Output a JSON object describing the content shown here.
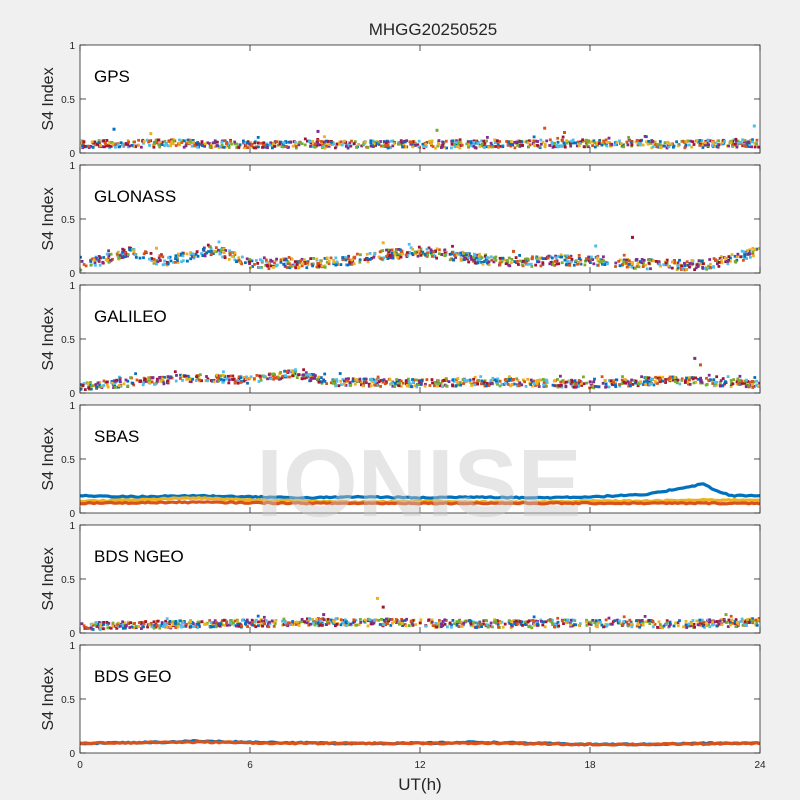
{
  "figure": {
    "title": "MHGG20250525",
    "xlabel": "UT(h)",
    "watermark": "IONISE"
  },
  "chart_data": [
    {
      "type": "scatter",
      "panel_label": "GPS",
      "ylabel": "S4 Index",
      "xlim": [
        0,
        24
      ],
      "ylim": [
        0,
        1
      ],
      "x_ticks": [
        0,
        6,
        12,
        18,
        24
      ],
      "y_ticks": [
        0,
        0.5,
        1
      ],
      "y_tick_labels": [
        "0",
        "0.5",
        "1"
      ],
      "grid": false,
      "baseline": [
        [
          0,
          0.08
        ],
        [
          3,
          0.09
        ],
        [
          6,
          0.08
        ],
        [
          9,
          0.08
        ],
        [
          12,
          0.08
        ],
        [
          15,
          0.08
        ],
        [
          18,
          0.09
        ],
        [
          21,
          0.08
        ],
        [
          24,
          0.09
        ]
      ],
      "spread": 0.07,
      "bursts": [
        [
          1.2,
          0.22
        ],
        [
          2.5,
          0.18
        ],
        [
          8.4,
          0.2
        ],
        [
          12.6,
          0.21
        ],
        [
          16.4,
          0.23
        ],
        [
          17.1,
          0.19
        ],
        [
          23.8,
          0.25
        ]
      ],
      "series_colors": [
        "#0072BD",
        "#D95319",
        "#EDB120",
        "#7E2F8E",
        "#77AC30",
        "#4DBEEE",
        "#A2142F"
      ]
    },
    {
      "type": "scatter",
      "panel_label": "GLONASS",
      "ylabel": "S4 Index",
      "xlim": [
        0,
        24
      ],
      "ylim": [
        0,
        1
      ],
      "x_ticks": [
        0,
        6,
        12,
        18,
        24
      ],
      "y_ticks": [
        0,
        0.5,
        1
      ],
      "y_tick_labels": [
        "0",
        "0.5",
        "1"
      ],
      "grid": false,
      "baseline": [
        [
          0,
          0.06
        ],
        [
          1.8,
          0.2
        ],
        [
          3,
          0.1
        ],
        [
          4.8,
          0.22
        ],
        [
          6,
          0.08
        ],
        [
          9,
          0.1
        ],
        [
          10.5,
          0.16
        ],
        [
          12,
          0.2
        ],
        [
          15,
          0.1
        ],
        [
          18,
          0.12
        ],
        [
          20,
          0.08
        ],
        [
          22,
          0.07
        ],
        [
          24,
          0.2
        ]
      ],
      "spread": 0.09,
      "bursts": [
        [
          10.7,
          0.28
        ],
        [
          19.5,
          0.33
        ],
        [
          18.2,
          0.25
        ],
        [
          15.3,
          0.2
        ],
        [
          2.7,
          0.23
        ]
      ],
      "series_colors": [
        "#0072BD",
        "#D95319",
        "#EDB120",
        "#7E2F8E",
        "#77AC30",
        "#4DBEEE",
        "#A2142F"
      ]
    },
    {
      "type": "scatter",
      "panel_label": "GALILEO",
      "ylabel": "S4 Index",
      "xlim": [
        0,
        24
      ],
      "ylim": [
        0,
        1
      ],
      "x_ticks": [
        0,
        6,
        12,
        18,
        24
      ],
      "y_ticks": [
        0,
        0.5,
        1
      ],
      "y_tick_labels": [
        "0",
        "0.5",
        "1"
      ],
      "grid": false,
      "baseline": [
        [
          0,
          0.06
        ],
        [
          2,
          0.1
        ],
        [
          4,
          0.14
        ],
        [
          6,
          0.12
        ],
        [
          7.5,
          0.18
        ],
        [
          9,
          0.1
        ],
        [
          12,
          0.09
        ],
        [
          15,
          0.1
        ],
        [
          18,
          0.08
        ],
        [
          21,
          0.12
        ],
        [
          24,
          0.08
        ]
      ],
      "spread": 0.07,
      "bursts": [
        [
          21.7,
          0.32
        ],
        [
          21.9,
          0.26
        ],
        [
          7.3,
          0.2
        ],
        [
          8.1,
          0.17
        ]
      ],
      "series_colors": [
        "#0072BD",
        "#D95319",
        "#EDB120",
        "#7E2F8E",
        "#77AC30",
        "#4DBEEE",
        "#A2142F"
      ]
    },
    {
      "type": "line",
      "panel_label": "SBAS",
      "ylabel": "S4 Index",
      "xlim": [
        0,
        24
      ],
      "ylim": [
        0,
        1
      ],
      "x_ticks": [
        0,
        6,
        12,
        18,
        24
      ],
      "y_ticks": [
        0,
        0.5,
        1
      ],
      "y_tick_labels": [
        "0",
        "0.5",
        "1"
      ],
      "grid": false,
      "series": [
        {
          "color": "#0072BD",
          "points": [
            [
              0,
              0.16
            ],
            [
              2,
              0.15
            ],
            [
              4,
              0.16
            ],
            [
              6,
              0.15
            ],
            [
              8,
              0.14
            ],
            [
              10,
              0.15
            ],
            [
              12,
              0.14
            ],
            [
              14,
              0.15
            ],
            [
              16,
              0.14
            ],
            [
              18,
              0.15
            ],
            [
              20,
              0.17
            ],
            [
              21,
              0.22
            ],
            [
              22,
              0.27
            ],
            [
              22.5,
              0.2
            ],
            [
              23,
              0.16
            ],
            [
              24,
              0.16
            ]
          ]
        },
        {
          "color": "#EDB120",
          "points": [
            [
              0,
              0.11
            ],
            [
              2,
              0.12
            ],
            [
              4,
              0.14
            ],
            [
              6,
              0.12
            ],
            [
              8,
              0.11
            ],
            [
              10,
              0.1
            ],
            [
              12,
              0.11
            ],
            [
              14,
              0.1
            ],
            [
              16,
              0.1
            ],
            [
              18,
              0.11
            ],
            [
              20,
              0.11
            ],
            [
              22,
              0.12
            ],
            [
              24,
              0.12
            ]
          ]
        },
        {
          "color": "#D95319",
          "points": [
            [
              0,
              0.09
            ],
            [
              4,
              0.1
            ],
            [
              8,
              0.09
            ],
            [
              12,
              0.09
            ],
            [
              16,
              0.09
            ],
            [
              20,
              0.09
            ],
            [
              24,
              0.09
            ]
          ]
        }
      ]
    },
    {
      "type": "scatter",
      "panel_label": "BDS NGEO",
      "ylabel": "S4 Index",
      "xlim": [
        0,
        24
      ],
      "ylim": [
        0,
        1
      ],
      "x_ticks": [
        0,
        6,
        12,
        18,
        24
      ],
      "y_ticks": [
        0,
        0.5,
        1
      ],
      "y_tick_labels": [
        "0",
        "0.5",
        "1"
      ],
      "grid": false,
      "baseline": [
        [
          0,
          0.06
        ],
        [
          3,
          0.08
        ],
        [
          6,
          0.09
        ],
        [
          8,
          0.1
        ],
        [
          10,
          0.1
        ],
        [
          12,
          0.09
        ],
        [
          15,
          0.08
        ],
        [
          18,
          0.09
        ],
        [
          21,
          0.08
        ],
        [
          24,
          0.1
        ]
      ],
      "spread": 0.07,
      "bursts": [
        [
          10.5,
          0.32
        ],
        [
          10.7,
          0.24
        ],
        [
          8.6,
          0.17
        ],
        [
          22.8,
          0.17
        ]
      ],
      "series_colors": [
        "#0072BD",
        "#D95319",
        "#EDB120",
        "#7E2F8E",
        "#77AC30",
        "#4DBEEE",
        "#A2142F"
      ]
    },
    {
      "type": "line",
      "panel_label": "BDS GEO",
      "ylabel": "S4 Index",
      "xlim": [
        0,
        24
      ],
      "ylim": [
        0,
        1
      ],
      "x_ticks": [
        0,
        6,
        12,
        18,
        24
      ],
      "y_ticks": [
        0,
        0.5,
        1
      ],
      "y_tick_labels": [
        "0",
        "0.5",
        "1"
      ],
      "x_tick_labels": [
        "0",
        "6",
        "12",
        "18",
        "24"
      ],
      "grid": false,
      "series": [
        {
          "color": "#0072BD",
          "points": [
            [
              0,
              0.09
            ],
            [
              3,
              0.1
            ],
            [
              4,
              0.11
            ],
            [
              6,
              0.1
            ],
            [
              9,
              0.09
            ],
            [
              12,
              0.09
            ],
            [
              14,
              0.1
            ],
            [
              16,
              0.09
            ],
            [
              18,
              0.08
            ],
            [
              20,
              0.08
            ],
            [
              22,
              0.09
            ],
            [
              24,
              0.09
            ]
          ]
        },
        {
          "color": "#D95319",
          "points": [
            [
              0,
              0.09
            ],
            [
              3,
              0.1
            ],
            [
              5,
              0.1
            ],
            [
              7,
              0.09
            ],
            [
              10,
              0.09
            ],
            [
              13,
              0.09
            ],
            [
              15,
              0.09
            ],
            [
              17,
              0.08
            ],
            [
              20,
              0.08
            ],
            [
              24,
              0.09
            ]
          ]
        }
      ]
    }
  ]
}
